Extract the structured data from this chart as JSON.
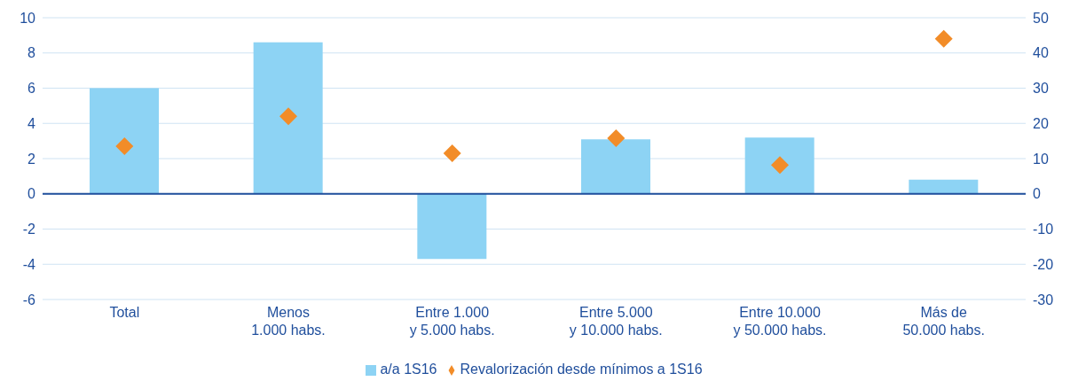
{
  "chart_data": {
    "type": "bar",
    "categories": [
      "Total",
      "Menos\n1.000 habs.",
      "Entre 1.000\ny 5.000 habs.",
      "Entre 5.000\ny 10.000 habs.",
      "Entre 10.000\ny 50.000 habs.",
      "Más de\n50.000 habs."
    ],
    "series": [
      {
        "name": "a/a 1S16",
        "color": "#8dd3f4",
        "values": [
          6.0,
          8.6,
          -3.7,
          3.1,
          3.2,
          0.8
        ]
      },
      {
        "name": "Revalorización desde mínimos a 1S16",
        "type": "scatter",
        "axis": "y2",
        "color": "#f28c28",
        "values": [
          13.5,
          22,
          11.5,
          15.8,
          8.2,
          44
        ]
      }
    ],
    "ylim": [
      -6,
      10
    ],
    "yticks": [
      -6,
      -4,
      -2,
      0,
      2,
      4,
      6,
      8,
      10
    ],
    "y2lim": [
      -30,
      50
    ],
    "y2ticks": [
      -30,
      -20,
      -10,
      0,
      10,
      20,
      30,
      40,
      50
    ],
    "ref_lines": [
      {
        "axis": "y",
        "value": 0,
        "color": "#1f4e9c"
      }
    ],
    "grid": "y",
    "legend": "bottom",
    "marker": "diamond"
  }
}
